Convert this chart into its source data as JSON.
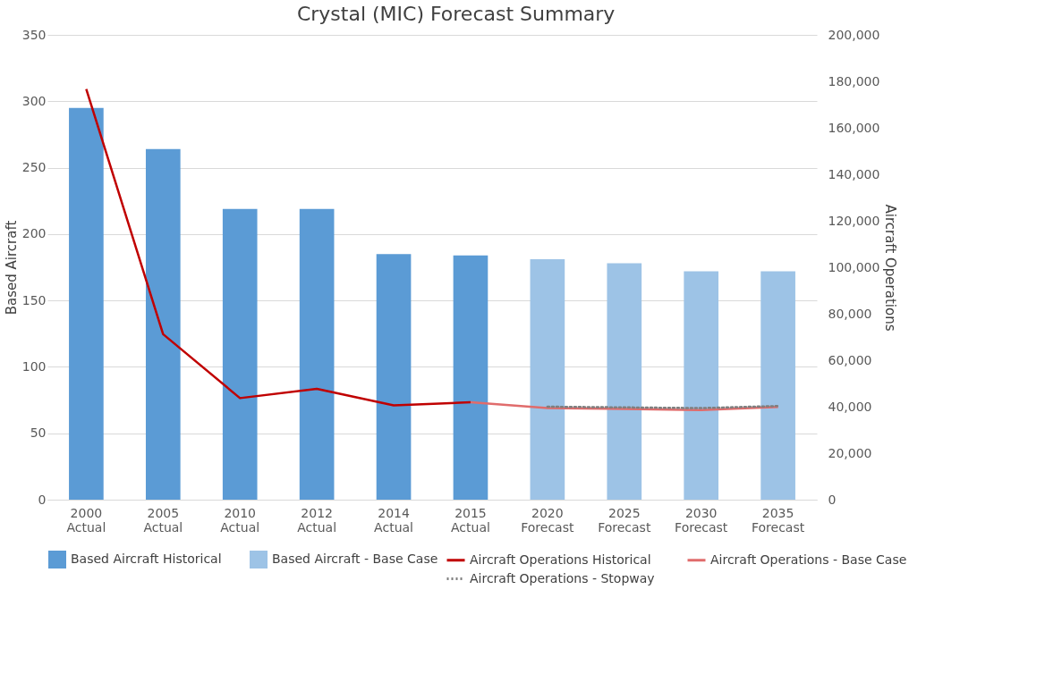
{
  "chart_data": {
    "type": "bar",
    "title": "Crystal (MIC) Forecast Summary",
    "ylabel": "Based Aircraft",
    "y2label": "Aircraft Operations",
    "categories": [
      "2000 Actual",
      "2005 Actual",
      "2010 Actual",
      "2012 Actual",
      "2014 Actual",
      "2015 Actual",
      "2020 Forecast",
      "2025 Forecast",
      "2030 Forecast",
      "2035 Forecast"
    ],
    "series": [
      {
        "name": "Based Aircraft Historical",
        "color": "#5b9bd5",
        "values": [
          295,
          264,
          219,
          219,
          185,
          184,
          null,
          null,
          null,
          null
        ]
      },
      {
        "name": "Based Aircraft - Base Case",
        "color": "#9dc3e6",
        "values": [
          null,
          null,
          null,
          null,
          null,
          null,
          181,
          178,
          172,
          172
        ]
      },
      {
        "name": "Aircraft Operations Historical",
        "type": "line",
        "axis": "y2",
        "color": "#c00000",
        "line_style": "solid",
        "values": [
          176700,
          71200,
          43700,
          47700,
          40600,
          41900,
          null,
          null,
          null,
          null
        ]
      },
      {
        "name": "Aircraft Operations - Base Case",
        "type": "line",
        "axis": "y2",
        "color": "#e06c6c",
        "line_style": "solid",
        "values": [
          null,
          null,
          null,
          null,
          null,
          41900,
          39400,
          39000,
          38600,
          39900
        ]
      },
      {
        "name": "Aircraft Operations - Stopway",
        "type": "line",
        "axis": "y2",
        "color": "#7f7f7f",
        "line_style": "dotted",
        "values": [
          null,
          null,
          null,
          null,
          null,
          null,
          40000,
          39700,
          39400,
          40300
        ]
      }
    ],
    "ylim": [
      0,
      350
    ],
    "yticks": [
      0,
      50,
      100,
      150,
      200,
      250,
      300,
      350
    ],
    "y2lim": [
      0,
      200000
    ],
    "y2ticks": [
      {
        "value": 0,
        "label": "0"
      },
      {
        "value": 20000,
        "label": "20,000"
      },
      {
        "value": 40000,
        "label": "40,000"
      },
      {
        "value": 60000,
        "label": "60,000"
      },
      {
        "value": 80000,
        "label": "80,000"
      },
      {
        "value": 100000,
        "label": "100,000"
      },
      {
        "value": 120000,
        "label": "120,000"
      },
      {
        "value": 140000,
        "label": "140,000"
      },
      {
        "value": 160000,
        "label": "160,000"
      },
      {
        "value": 180000,
        "label": "180,000"
      },
      {
        "value": 200000,
        "label": "200,000"
      }
    ],
    "grid": "y",
    "legend": "bottom"
  }
}
